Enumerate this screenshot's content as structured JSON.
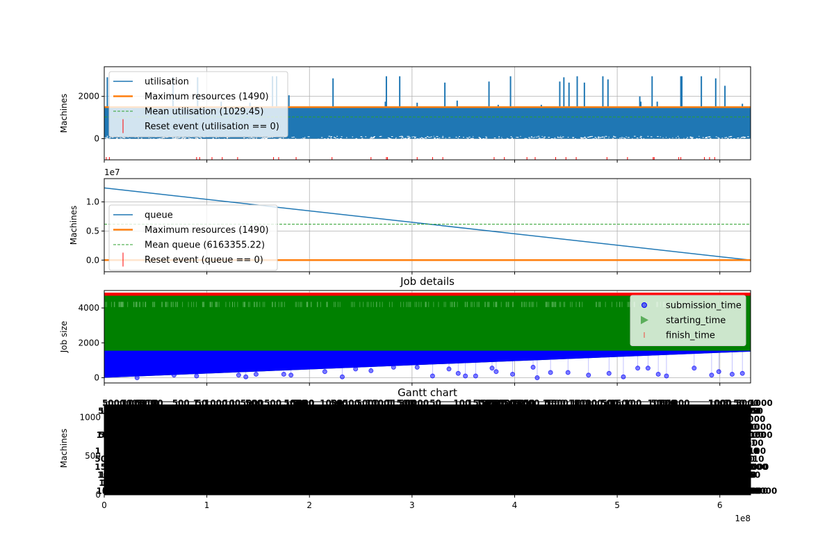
{
  "colors": {
    "utilisation": "#1f77b4",
    "max": "#ff7f0e",
    "mean": "#2ca02c",
    "reset": "#ff0000",
    "submission": "#0000ff",
    "starting": "#008000",
    "finish": "#ff0000",
    "grid": "#b0b0b0"
  },
  "chart_data": [
    {
      "id": "utilisation",
      "type": "area",
      "ylabel": "Machines",
      "xlim": [
        0,
        630000000
      ],
      "ylim": [
        -1000,
        3400
      ],
      "yticks": [
        0,
        2000
      ],
      "xticks": [
        0,
        100000000,
        200000000,
        300000000,
        400000000,
        500000000,
        600000000
      ],
      "grid": true,
      "legend_placement": "upper-left",
      "series": [
        {
          "name": "utilisation",
          "kind": "band",
          "low": 0,
          "high": 1490
        },
        {
          "name": "Maximum resources (1490)",
          "kind": "hline",
          "y": 1490
        },
        {
          "name": "Mean utilisation (1029.45)",
          "kind": "hline-dashed",
          "y": 1029.45
        },
        {
          "name": "Reset event (utilisation == 0)",
          "kind": "events",
          "y": -1000
        }
      ],
      "spikes": [
        {
          "x": 3000000,
          "y": 2900
        },
        {
          "x": 67000000,
          "y": 2900
        },
        {
          "x": 91000000,
          "y": 2900
        },
        {
          "x": 114000000,
          "y": 1750
        },
        {
          "x": 142000000,
          "y": 1700
        },
        {
          "x": 164000000,
          "y": 2950
        },
        {
          "x": 168000000,
          "y": 2950
        },
        {
          "x": 180000000,
          "y": 2050
        },
        {
          "x": 223000000,
          "y": 2850
        },
        {
          "x": 274000000,
          "y": 1750
        },
        {
          "x": 275000000,
          "y": 2950
        },
        {
          "x": 288000000,
          "y": 2950
        },
        {
          "x": 305000000,
          "y": 1700
        },
        {
          "x": 332000000,
          "y": 2650
        },
        {
          "x": 344000000,
          "y": 1800
        },
        {
          "x": 375000000,
          "y": 2700
        },
        {
          "x": 384000000,
          "y": 1600
        },
        {
          "x": 396000000,
          "y": 2950
        },
        {
          "x": 426000000,
          "y": 1600
        },
        {
          "x": 444000000,
          "y": 2700
        },
        {
          "x": 448000000,
          "y": 2900
        },
        {
          "x": 453000000,
          "y": 2650
        },
        {
          "x": 461000000,
          "y": 2950
        },
        {
          "x": 468000000,
          "y": 2650
        },
        {
          "x": 486000000,
          "y": 2950
        },
        {
          "x": 491000000,
          "y": 2800
        },
        {
          "x": 522000000,
          "y": 2000
        },
        {
          "x": 523000000,
          "y": 1750
        },
        {
          "x": 534000000,
          "y": 2950
        },
        {
          "x": 539000000,
          "y": 1750
        },
        {
          "x": 562000000,
          "y": 2950
        },
        {
          "x": 563000000,
          "y": 2950
        },
        {
          "x": 582000000,
          "y": 2950
        },
        {
          "x": 596000000,
          "y": 2850
        },
        {
          "x": 605000000,
          "y": 2500
        },
        {
          "x": 622000000,
          "y": 1650
        }
      ],
      "reset_events": [
        2000000,
        5000000,
        90000000,
        93000000,
        105000000,
        115000000,
        130000000,
        165000000,
        170000000,
        187000000,
        222000000,
        260000000,
        275000000,
        276000000,
        305000000,
        320000000,
        330000000,
        380000000,
        390000000,
        412000000,
        420000000,
        440000000,
        450000000,
        460000000,
        490000000,
        510000000,
        535000000,
        536000000,
        560000000,
        562000000,
        585000000,
        590000000,
        595000000
      ]
    },
    {
      "id": "queue",
      "type": "line",
      "ylabel": "Machines",
      "offset_label": "1e7",
      "xlim": [
        0,
        630000000
      ],
      "ylim": [
        -2000000,
        14000000
      ],
      "yticks": [
        0,
        5000000,
        10000000
      ],
      "ytick_labels": [
        "0.0",
        "0.5",
        "1.0"
      ],
      "xticks": [
        0,
        100000000,
        200000000,
        300000000,
        400000000,
        500000000,
        600000000
      ],
      "grid": true,
      "legend_placement": "center-left",
      "series": [
        {
          "name": "queue",
          "kind": "line",
          "x": [
            0,
            630000000
          ],
          "y": [
            12400000,
            0
          ]
        },
        {
          "name": "Maximum resources (1490)",
          "kind": "hline",
          "y": 1490
        },
        {
          "name": "Mean queue (6163355.22)",
          "kind": "hline-dashed",
          "y": 6163355.22
        },
        {
          "name": "Reset event (queue == 0)",
          "kind": "events"
        }
      ]
    },
    {
      "id": "jobs",
      "type": "scatter",
      "title": "Job details",
      "ylabel": "Job size",
      "xlim": [
        0,
        630000000
      ],
      "ylim": [
        -300,
        5000
      ],
      "yticks": [
        0,
        2000,
        4000
      ],
      "xticks": [
        0,
        100000000,
        200000000,
        300000000,
        400000000,
        500000000,
        600000000
      ],
      "grid": true,
      "legend_placement": "upper-right",
      "series": [
        {
          "name": "submission_time",
          "kind": "band-blue",
          "low_start": 0,
          "low_end": 1500,
          "high": 1550
        },
        {
          "name": "starting_time",
          "kind": "band-green",
          "low_start": 0,
          "low_end": 1500,
          "high": 4700
        },
        {
          "name": "finish_time",
          "kind": "band-red",
          "low": 4700,
          "high": 4880
        }
      ],
      "outliers": [
        {
          "x": 32000000,
          "y": 0
        },
        {
          "x": 68000000,
          "y": 150
        },
        {
          "x": 90000000,
          "y": 100
        },
        {
          "x": 110000000,
          "y": 400
        },
        {
          "x": 131000000,
          "y": 150
        },
        {
          "x": 138000000,
          "y": 50
        },
        {
          "x": 148000000,
          "y": 200
        },
        {
          "x": 175000000,
          "y": 200
        },
        {
          "x": 182000000,
          "y": 150
        },
        {
          "x": 215000000,
          "y": 350
        },
        {
          "x": 232000000,
          "y": 50
        },
        {
          "x": 245000000,
          "y": 500
        },
        {
          "x": 260000000,
          "y": 400
        },
        {
          "x": 282000000,
          "y": 600
        },
        {
          "x": 305000000,
          "y": 600
        },
        {
          "x": 320000000,
          "y": 100
        },
        {
          "x": 336000000,
          "y": 500
        },
        {
          "x": 345000000,
          "y": 250
        },
        {
          "x": 352000000,
          "y": 100
        },
        {
          "x": 362000000,
          "y": 100
        },
        {
          "x": 378000000,
          "y": 550
        },
        {
          "x": 382000000,
          "y": 350
        },
        {
          "x": 398000000,
          "y": 200
        },
        {
          "x": 418000000,
          "y": 600
        },
        {
          "x": 422000000,
          "y": 0
        },
        {
          "x": 435000000,
          "y": 300
        },
        {
          "x": 452000000,
          "y": 300
        },
        {
          "x": 472000000,
          "y": 150
        },
        {
          "x": 492000000,
          "y": 250
        },
        {
          "x": 506000000,
          "y": 50
        },
        {
          "x": 520000000,
          "y": 550
        },
        {
          "x": 530000000,
          "y": 550
        },
        {
          "x": 540000000,
          "y": 200
        },
        {
          "x": 548000000,
          "y": 100
        },
        {
          "x": 575000000,
          "y": 550
        },
        {
          "x": 592000000,
          "y": 150
        },
        {
          "x": 599000000,
          "y": 350
        },
        {
          "x": 612000000,
          "y": 200
        },
        {
          "x": 622000000,
          "y": 250
        }
      ]
    },
    {
      "id": "gantt",
      "type": "bar",
      "title": "Gantt chart",
      "ylabel": "Machines",
      "xlabel_offset": "1e8",
      "xlim": [
        0,
        630000000
      ],
      "xticks": [
        0,
        100000000,
        200000000,
        300000000,
        400000000,
        500000000,
        600000000
      ],
      "xtick_labels": [
        "0",
        "1",
        "2",
        "3",
        "4",
        "5",
        "6"
      ],
      "yticks": [
        0,
        500,
        1000
      ],
      "ytick_labels": [
        "0",
        "500",
        "1000"
      ],
      "grid": false
    }
  ]
}
